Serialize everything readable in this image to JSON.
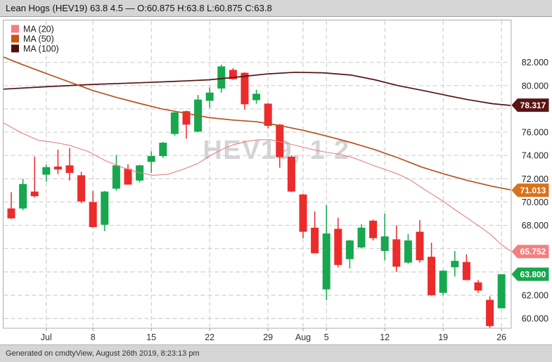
{
  "title_bar": {
    "text": "Lean Hogs (HEV19) 63.8 4.5 — O:60.875 H:63.8 L:60.875 C:63.8"
  },
  "footer": {
    "text": "Generated on cmdtyView, August 26th 2019, 8:23:13 pm"
  },
  "legend": [
    {
      "label": "MA (20)",
      "color": "#F08080"
    },
    {
      "label": "MA (50)",
      "color": "#C3561B"
    },
    {
      "label": "MA (100)",
      "color": "#4F0E0E"
    }
  ],
  "colors": {
    "candle_up": "#17A74E",
    "candle_down": "#EC2B2B",
    "grid": "#CFCFCF",
    "border": "#ADADAD",
    "axis_text": "#222222",
    "watermark": "#D4D4D4",
    "ma20_line": "#E57F7F",
    "ma50_line": "#B5541C",
    "ma100_line": "#571212"
  },
  "chart_data": {
    "type": "candlestick",
    "title": "Lean Hogs (HEV19) daily candles with moving averages",
    "watermark": "HEV19, 1 2",
    "ylim": [
      59.2,
      85.7
    ],
    "grid": true,
    "gridline_prices": [
      60,
      62,
      64,
      66,
      68,
      70,
      72,
      74,
      76,
      78,
      80,
      82
    ],
    "y_axis_labels": [
      {
        "price": 82,
        "text": "82.000"
      },
      {
        "price": 80,
        "text": "80.000"
      },
      {
        "price": 76,
        "text": "76.000"
      },
      {
        "price": 74,
        "text": "74.000"
      },
      {
        "price": 72,
        "text": "72.000"
      },
      {
        "price": 70,
        "text": "70.000"
      },
      {
        "price": 68,
        "text": "68.000"
      },
      {
        "price": 62,
        "text": "62.000"
      },
      {
        "price": 60,
        "text": "60.000"
      }
    ],
    "x_ticks": [
      {
        "index": 3,
        "label": "Jul"
      },
      {
        "index": 7,
        "label": "8"
      },
      {
        "index": 12,
        "label": "15"
      },
      {
        "index": 17,
        "label": "22"
      },
      {
        "index": 22,
        "label": "29"
      },
      {
        "index": 25,
        "label": "Aug"
      },
      {
        "index": 27,
        "label": "5"
      },
      {
        "index": 32,
        "label": "12"
      },
      {
        "index": 37,
        "label": "19"
      },
      {
        "index": 42,
        "label": "26"
      }
    ],
    "badges": [
      {
        "text": "78.317",
        "price": 78.317,
        "color": "#5A1414",
        "series": "MA (100)"
      },
      {
        "text": "71.013",
        "price": 71.013,
        "color": "#D9731A",
        "series": "MA (50)"
      },
      {
        "text": "65.752",
        "price": 65.752,
        "color": "#F28080",
        "series": "MA (20)"
      },
      {
        "text": "63.800",
        "price": 63.8,
        "color": "#17A74E",
        "series": "last price"
      }
    ],
    "candles": [
      {
        "date": "Jun 26",
        "o": 69.45,
        "h": 70.85,
        "l": 68.55,
        "c": 68.6
      },
      {
        "date": "Jun 27",
        "o": 69.45,
        "h": 72.0,
        "l": 69.3,
        "c": 71.55
      },
      {
        "date": "Jun 28",
        "o": 70.9,
        "h": 73.9,
        "l": 70.4,
        "c": 70.5
      },
      {
        "date": "Jul 1",
        "o": 72.35,
        "h": 73.2,
        "l": 71.75,
        "c": 73.0
      },
      {
        "date": "Jul 2",
        "o": 73.05,
        "h": 74.5,
        "l": 72.4,
        "c": 72.8
      },
      {
        "date": "Jul 3",
        "o": 73.15,
        "h": 74.65,
        "l": 71.85,
        "c": 72.5
      },
      {
        "date": "Jul 5",
        "o": 72.3,
        "h": 72.6,
        "l": 69.9,
        "c": 70.05
      },
      {
        "date": "Jul 8",
        "o": 70.0,
        "h": 70.95,
        "l": 67.8,
        "c": 67.85
      },
      {
        "date": "Jul 9",
        "o": 68.05,
        "h": 70.95,
        "l": 67.5,
        "c": 70.9
      },
      {
        "date": "Jul 10",
        "o": 71.15,
        "h": 74.05,
        "l": 71.0,
        "c": 73.15
      },
      {
        "date": "Jul 11",
        "o": 72.85,
        "h": 73.25,
        "l": 71.5,
        "c": 71.5
      },
      {
        "date": "Jul 12",
        "o": 71.85,
        "h": 73.2,
        "l": 71.7,
        "c": 73.15
      },
      {
        "date": "Jul 15",
        "o": 73.45,
        "h": 74.35,
        "l": 72.5,
        "c": 73.95
      },
      {
        "date": "Jul 16",
        "o": 73.95,
        "h": 75.15,
        "l": 73.8,
        "c": 75.1
      },
      {
        "date": "Jul 17",
        "o": 75.85,
        "h": 77.75,
        "l": 75.7,
        "c": 77.7
      },
      {
        "date": "Jul 18",
        "o": 77.8,
        "h": 77.85,
        "l": 75.45,
        "c": 76.65
      },
      {
        "date": "Jul 19",
        "o": 76.05,
        "h": 79.2,
        "l": 76.0,
        "c": 78.8
      },
      {
        "date": "Jul 22",
        "o": 78.7,
        "h": 79.85,
        "l": 78.1,
        "c": 79.4
      },
      {
        "date": "Jul 23",
        "o": 79.75,
        "h": 81.8,
        "l": 79.4,
        "c": 81.65
      },
      {
        "date": "Jul 24",
        "o": 81.35,
        "h": 81.5,
        "l": 80.5,
        "c": 80.55
      },
      {
        "date": "Jul 25",
        "o": 81.1,
        "h": 81.15,
        "l": 77.95,
        "c": 78.4
      },
      {
        "date": "Jul 26",
        "o": 78.75,
        "h": 79.65,
        "l": 78.45,
        "c": 79.3
      },
      {
        "date": "Jul 29",
        "o": 78.45,
        "h": 78.5,
        "l": 76.35,
        "c": 76.55
      },
      {
        "date": "Jul 30",
        "o": 76.65,
        "h": 76.7,
        "l": 72.95,
        "c": 73.85
      },
      {
        "date": "Jul 31",
        "o": 73.9,
        "h": 74.0,
        "l": 70.85,
        "c": 70.9
      },
      {
        "date": "Aug 1",
        "o": 70.65,
        "h": 70.7,
        "l": 66.9,
        "c": 67.45
      },
      {
        "date": "Aug 2",
        "o": 67.8,
        "h": 69.2,
        "l": 65.6,
        "c": 65.6
      },
      {
        "date": "Aug 5",
        "o": 62.5,
        "h": 69.75,
        "l": 61.6,
        "c": 67.3
      },
      {
        "date": "Aug 6",
        "o": 67.7,
        "h": 68.65,
        "l": 64.4,
        "c": 64.6
      },
      {
        "date": "Aug 7",
        "o": 65.1,
        "h": 66.75,
        "l": 64.3,
        "c": 66.7
      },
      {
        "date": "Aug 8",
        "o": 66.1,
        "h": 68.1,
        "l": 66.0,
        "c": 67.8
      },
      {
        "date": "Aug 9",
        "o": 68.4,
        "h": 68.5,
        "l": 66.7,
        "c": 66.9
      },
      {
        "date": "Aug 12",
        "o": 65.8,
        "h": 69.0,
        "l": 65.0,
        "c": 67.05
      },
      {
        "date": "Aug 13",
        "o": 66.8,
        "h": 68.0,
        "l": 64.0,
        "c": 64.45
      },
      {
        "date": "Aug 14",
        "o": 64.8,
        "h": 67.25,
        "l": 64.7,
        "c": 66.7
      },
      {
        "date": "Aug 15",
        "o": 67.45,
        "h": 68.45,
        "l": 64.8,
        "c": 65.0
      },
      {
        "date": "Aug 16",
        "o": 65.3,
        "h": 66.5,
        "l": 61.95,
        "c": 62.0
      },
      {
        "date": "Aug 19",
        "o": 62.2,
        "h": 64.15,
        "l": 62.0,
        "c": 64.1
      },
      {
        "date": "Aug 20",
        "o": 64.4,
        "h": 65.8,
        "l": 63.6,
        "c": 64.95
      },
      {
        "date": "Aug 21",
        "o": 64.85,
        "h": 65.5,
        "l": 63.3,
        "c": 63.3
      },
      {
        "date": "Aug 22",
        "o": 63.1,
        "h": 63.3,
        "l": 62.2,
        "c": 62.4
      },
      {
        "date": "Aug 23",
        "o": 61.6,
        "h": 61.9,
        "l": 59.2,
        "c": 59.35
      },
      {
        "date": "Aug 26",
        "o": 60.875,
        "h": 63.8,
        "l": 60.875,
        "c": 63.8
      }
    ],
    "ma20_points": [
      [
        5,
        76.8
      ],
      [
        30,
        75.95
      ],
      [
        55,
        75.3
      ],
      [
        80,
        75.1
      ],
      [
        100,
        74.85
      ],
      [
        125,
        74.35
      ],
      [
        150,
        73.55
      ],
      [
        175,
        72.95
      ],
      [
        200,
        72.5
      ],
      [
        218,
        72.3
      ],
      [
        240,
        72.4
      ],
      [
        262,
        72.85
      ],
      [
        281,
        73.3
      ],
      [
        298,
        73.95
      ],
      [
        315,
        74.5
      ],
      [
        331,
        74.9
      ],
      [
        350,
        75.2
      ],
      [
        368,
        75.35
      ],
      [
        385,
        75.35
      ],
      [
        400,
        75.15
      ],
      [
        415,
        74.95
      ],
      [
        432,
        74.7
      ],
      [
        449,
        74.45
      ],
      [
        466,
        74.25
      ],
      [
        483,
        74.1
      ],
      [
        500,
        73.85
      ],
      [
        516,
        73.5
      ],
      [
        533,
        73.1
      ],
      [
        550,
        72.75
      ],
      [
        566,
        72.4
      ],
      [
        582,
        71.95
      ],
      [
        598,
        71.3
      ],
      [
        615,
        70.65
      ],
      [
        632,
        70.0
      ],
      [
        648,
        69.3
      ],
      [
        665,
        68.6
      ],
      [
        682,
        67.9
      ],
      [
        698,
        67.2
      ],
      [
        712,
        66.4
      ],
      [
        726,
        65.8
      ]
    ],
    "ma50_points": [
      [
        5,
        82.45
      ],
      [
        30,
        81.85
      ],
      [
        63,
        81.1
      ],
      [
        97,
        80.35
      ],
      [
        115,
        79.95
      ],
      [
        131,
        79.6
      ],
      [
        165,
        79.0
      ],
      [
        200,
        78.45
      ],
      [
        230,
        78.0
      ],
      [
        262,
        77.65
      ],
      [
        298,
        77.25
      ],
      [
        330,
        77.05
      ],
      [
        365,
        76.9
      ],
      [
        395,
        76.6
      ],
      [
        432,
        76.15
      ],
      [
        466,
        75.65
      ],
      [
        500,
        75.1
      ],
      [
        533,
        74.5
      ],
      [
        566,
        73.8
      ],
      [
        600,
        73.0
      ],
      [
        632,
        72.4
      ],
      [
        665,
        71.85
      ],
      [
        700,
        71.35
      ],
      [
        726,
        71.05
      ]
    ],
    "ma100_points": [
      [
        5,
        79.7
      ],
      [
        63,
        79.9
      ],
      [
        131,
        80.1
      ],
      [
        200,
        80.25
      ],
      [
        262,
        80.4
      ],
      [
        298,
        80.5
      ],
      [
        340,
        80.75
      ],
      [
        380,
        81.0
      ],
      [
        420,
        81.15
      ],
      [
        460,
        81.1
      ],
      [
        500,
        80.9
      ],
      [
        533,
        80.5
      ],
      [
        566,
        80.0
      ],
      [
        600,
        79.6
      ],
      [
        632,
        79.2
      ],
      [
        665,
        78.8
      ],
      [
        700,
        78.45
      ],
      [
        726,
        78.3
      ]
    ]
  }
}
